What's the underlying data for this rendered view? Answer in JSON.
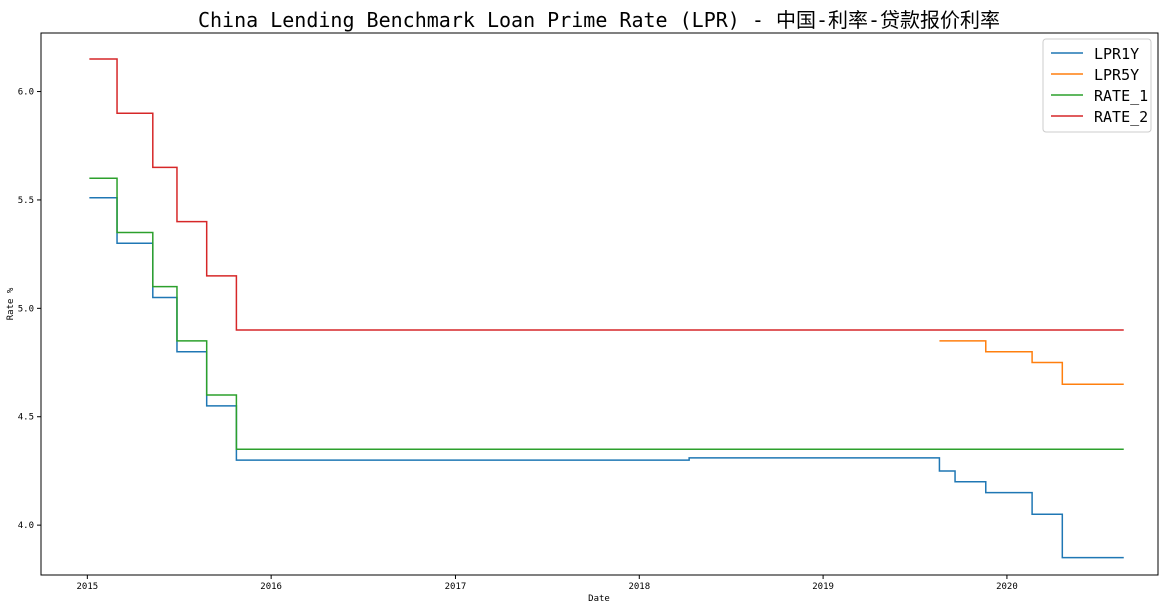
{
  "chart_data": {
    "type": "line",
    "title": "China Lending Benchmark Loan Prime Rate (LPR) - 中国-利率-贷款报价利率",
    "xlabel": "Date",
    "ylabel": "Rate %",
    "x_ticks": [
      "2015",
      "2016",
      "2017",
      "2018",
      "2019",
      "2020"
    ],
    "y_ticks": [
      "4.0",
      "4.5",
      "5.0",
      "5.5",
      "6.0"
    ],
    "xlim": [
      "2014-10-01",
      "2020-10-27"
    ],
    "ylim": [
      3.77,
      6.27
    ],
    "grid": false,
    "legend_position": "top-right",
    "series": [
      {
        "name": "LPR1Y",
        "color": "#1f77b4",
        "step": true,
        "points": [
          [
            "2015-01-05",
            5.51
          ],
          [
            "2015-03-01",
            5.3
          ],
          [
            "2015-05-11",
            5.05
          ],
          [
            "2015-06-28",
            4.8
          ],
          [
            "2015-08-26",
            4.55
          ],
          [
            "2015-10-24",
            4.3
          ],
          [
            "2018-04-10",
            4.31
          ],
          [
            "2019-08-20",
            4.25
          ],
          [
            "2019-09-20",
            4.2
          ],
          [
            "2019-11-20",
            4.15
          ],
          [
            "2020-02-20",
            4.05
          ],
          [
            "2020-04-20",
            3.85
          ],
          [
            "2020-08-20",
            3.85
          ]
        ]
      },
      {
        "name": "LPR5Y",
        "color": "#ff7f0e",
        "step": true,
        "points": [
          [
            "2019-08-20",
            4.85
          ],
          [
            "2019-11-20",
            4.8
          ],
          [
            "2020-02-20",
            4.75
          ],
          [
            "2020-04-20",
            4.65
          ],
          [
            "2020-08-20",
            4.65
          ]
        ]
      },
      {
        "name": "RATE_1",
        "color": "#2ca02c",
        "step": true,
        "points": [
          [
            "2015-01-05",
            5.6
          ],
          [
            "2015-03-01",
            5.35
          ],
          [
            "2015-05-11",
            5.1
          ],
          [
            "2015-06-28",
            4.85
          ],
          [
            "2015-08-26",
            4.6
          ],
          [
            "2015-10-24",
            4.35
          ],
          [
            "2020-08-20",
            4.35
          ]
        ]
      },
      {
        "name": "RATE_2",
        "color": "#d62728",
        "step": true,
        "points": [
          [
            "2015-01-05",
            6.15
          ],
          [
            "2015-03-01",
            5.9
          ],
          [
            "2015-05-11",
            5.65
          ],
          [
            "2015-06-28",
            5.4
          ],
          [
            "2015-08-26",
            5.15
          ],
          [
            "2015-10-24",
            4.9
          ],
          [
            "2020-08-20",
            4.9
          ]
        ]
      }
    ]
  }
}
